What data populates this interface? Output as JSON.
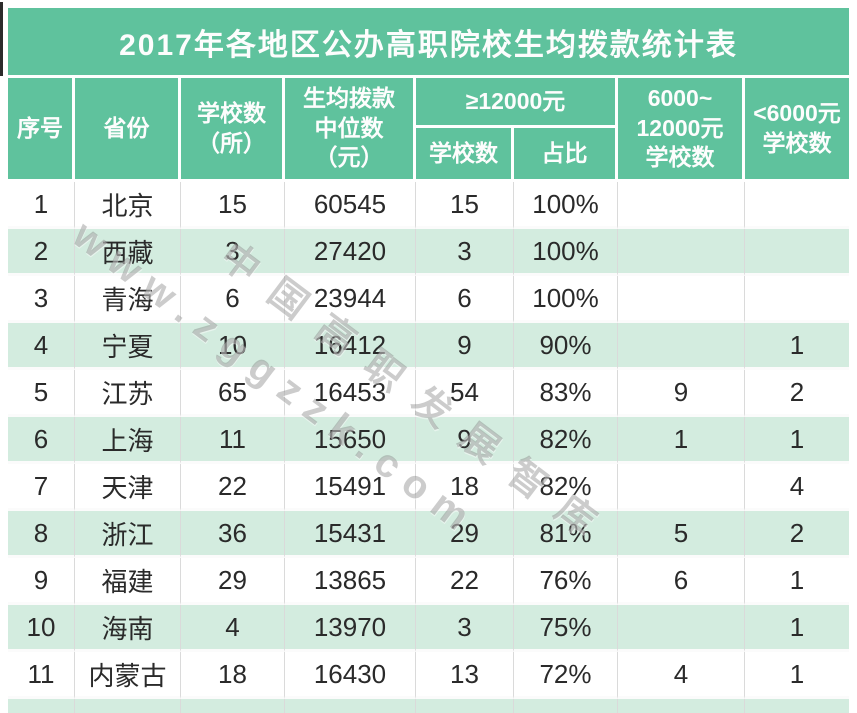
{
  "title": "2017年各地区公办高职院校生均拨款统计表",
  "watermark": {
    "line1": "中国高职发展智库",
    "line2": "www.zggzzk.com"
  },
  "colors": {
    "green": "#5fc29d",
    "row_alt": "#d3ecdf"
  },
  "header": {
    "index": "序号",
    "province": "省份",
    "schools": "学校数\n（所）",
    "median": "生均拨款\n中位数\n（元）",
    "ge12000_group": "≥12000元",
    "ge12000_schools": "学校数",
    "ge12000_share": "占比",
    "mid_band": "6000~\n12000元\n学校数",
    "below6000": "<6000元\n学校数"
  },
  "cell_names": [
    "row-index",
    "province",
    "school-count",
    "median-funding",
    "ge12000-count",
    "ge12000-share",
    "band-6000-12000-count",
    "below-6000-count"
  ],
  "chart_data": {
    "type": "table",
    "title": "2017年各地区公办高职院校生均拨款统计表",
    "columns": [
      "序号",
      "省份",
      "学校数（所）",
      "生均拨款中位数（元）",
      "≥12000元 学校数",
      "≥12000元 占比",
      "6000~12000元学校数",
      "<6000元学校数"
    ],
    "rows": [
      [
        1,
        "北京",
        15,
        60545,
        15,
        "100%",
        "",
        ""
      ],
      [
        2,
        "西藏",
        3,
        27420,
        3,
        "100%",
        "",
        ""
      ],
      [
        3,
        "青海",
        6,
        23944,
        6,
        "100%",
        "",
        ""
      ],
      [
        4,
        "宁夏",
        10,
        16412,
        9,
        "90%",
        "",
        1
      ],
      [
        5,
        "江苏",
        65,
        16453,
        54,
        "83%",
        9,
        2
      ],
      [
        6,
        "上海",
        11,
        15650,
        9,
        "82%",
        1,
        1
      ],
      [
        7,
        "天津",
        22,
        15491,
        18,
        "82%",
        "",
        4
      ],
      [
        8,
        "浙江",
        36,
        15431,
        29,
        "81%",
        5,
        2
      ],
      [
        9,
        "福建",
        29,
        13865,
        22,
        "76%",
        6,
        1
      ],
      [
        10,
        "海南",
        4,
        13970,
        3,
        "75%",
        "",
        1
      ],
      [
        11,
        "内蒙古",
        18,
        16430,
        13,
        "72%",
        4,
        1
      ]
    ]
  }
}
